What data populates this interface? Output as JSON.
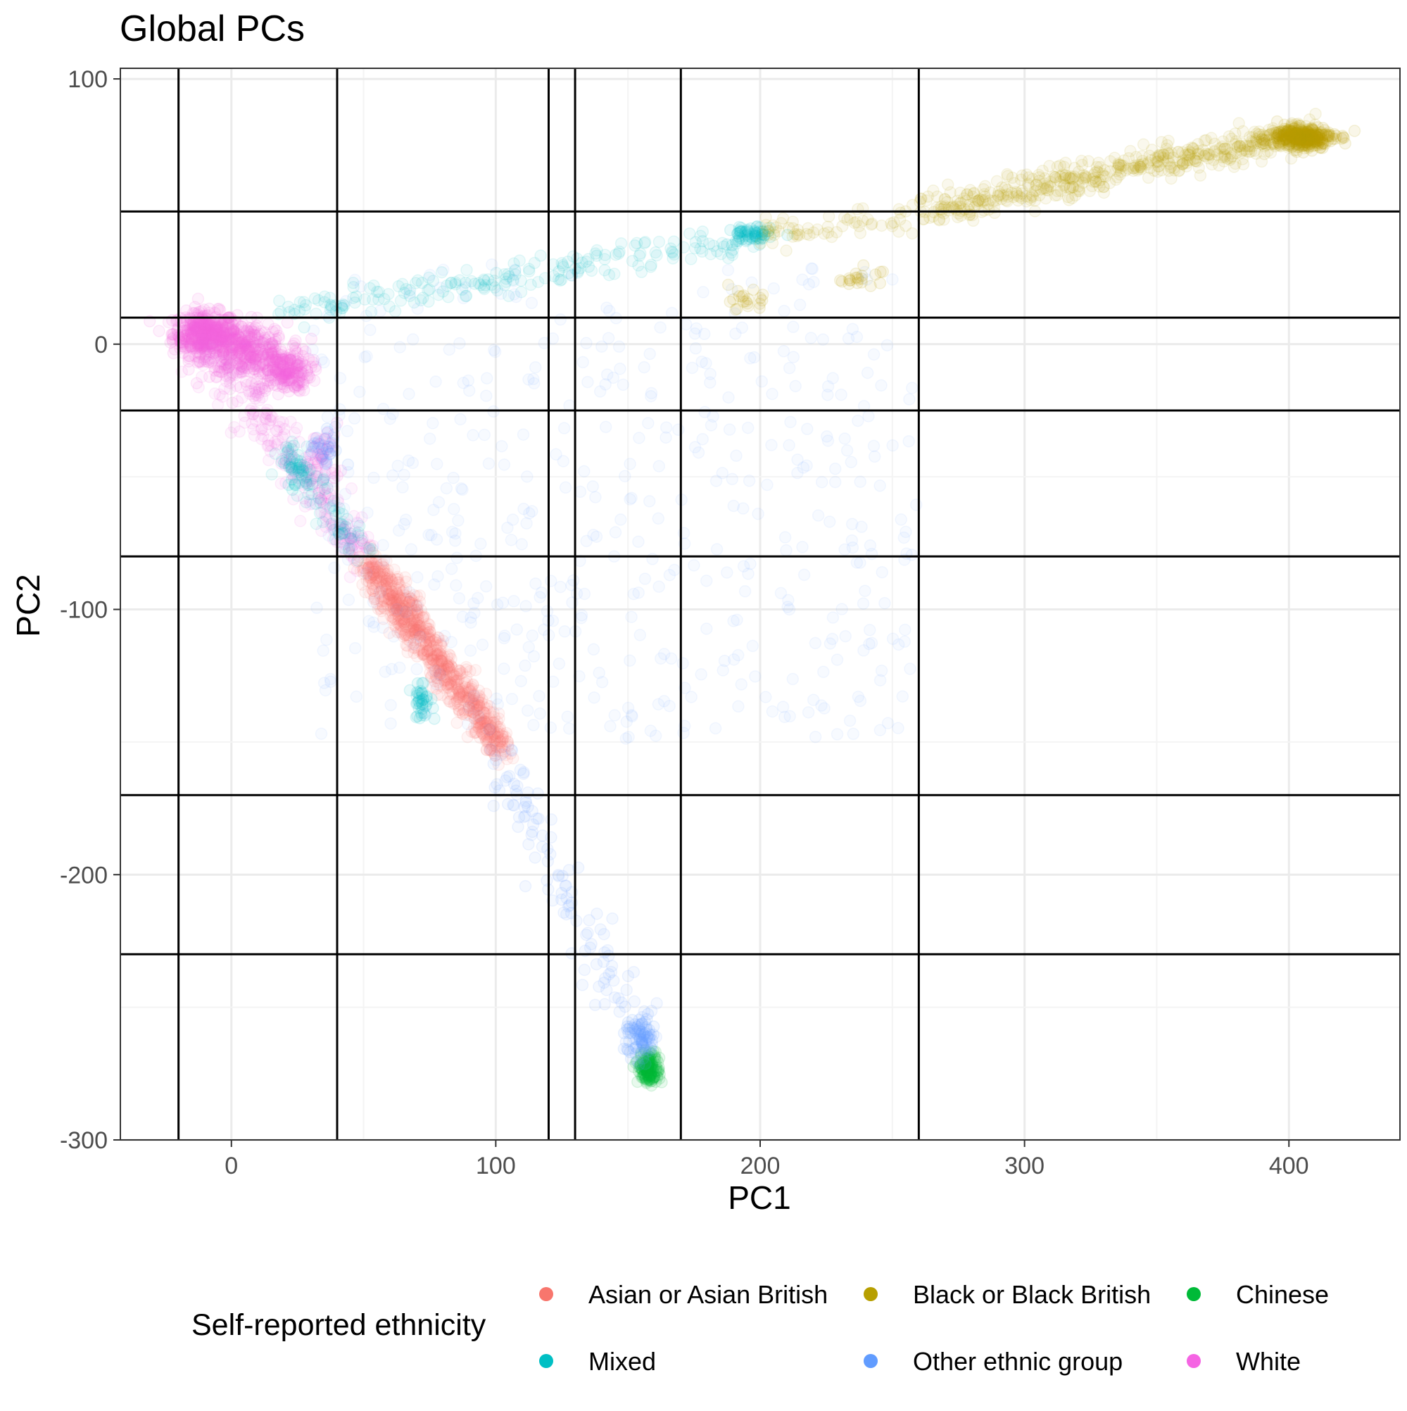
{
  "chart_data": {
    "type": "scatter",
    "title": "Global PCs",
    "xlabel": "PC1",
    "ylabel": "PC2",
    "xlim": [
      -42,
      442
    ],
    "ylim": [
      -300,
      104
    ],
    "x_ticks": [
      0,
      100,
      200,
      300,
      400
    ],
    "y_ticks": [
      100,
      0,
      -100,
      -200,
      -300
    ],
    "grid": true,
    "theme": "bw",
    "vertical_lines": [
      -20,
      40,
      120,
      130,
      170,
      260
    ],
    "horizontal_lines": [
      50,
      10,
      -25,
      -80,
      -170,
      -230
    ],
    "legend": {
      "title": "Self-reported ethnicity",
      "position": "bottom",
      "entries": [
        {
          "label": "Asian or Asian British",
          "color": "#F8766D"
        },
        {
          "label": "Black or Black British",
          "color": "#B79F00"
        },
        {
          "label": "Chinese",
          "color": "#00BA38"
        },
        {
          "label": "Mixed",
          "color": "#00BFC4"
        },
        {
          "label": "Other ethnic group",
          "color": "#619CFF"
        },
        {
          "label": "White",
          "color": "#F564E3"
        }
      ]
    },
    "series": [
      {
        "name": "White",
        "color": "#F564E3",
        "clusters": [
          {
            "x": -10,
            "y": 4,
            "n": 400,
            "sx": 6,
            "sy": 4
          },
          {
            "x": 5,
            "y": -2,
            "n": 300,
            "sx": 8,
            "sy": 5
          },
          {
            "x": 20,
            "y": -10,
            "n": 200,
            "sx": 5,
            "sy": 4
          },
          {
            "x": 35,
            "y": -42,
            "n": 40,
            "sx": 3,
            "sy": 6
          }
        ],
        "tracks": [
          {
            "x0": -10,
            "y0": 0,
            "x1": 50,
            "y1": -80,
            "n": 250,
            "spread": 4
          }
        ]
      },
      {
        "name": "Asian or Asian British",
        "color": "#F8766D",
        "tracks": [
          {
            "x0": 52,
            "y0": -83,
            "x1": 102,
            "y1": -152,
            "n": 800,
            "spread": 3
          }
        ]
      },
      {
        "name": "Mixed",
        "color": "#00BFC4",
        "clusters": [
          {
            "x": 196,
            "y": 41,
            "n": 60,
            "sx": 4,
            "sy": 2
          },
          {
            "x": 72,
            "y": -135,
            "n": 40,
            "sx": 2,
            "sy": 3
          },
          {
            "x": 25,
            "y": -47,
            "n": 30,
            "sx": 3,
            "sy": 4
          }
        ],
        "tracks": [
          {
            "x0": 20,
            "y0": 12,
            "x1": 198,
            "y1": 40,
            "n": 200,
            "spread": 3
          },
          {
            "x0": 20,
            "y0": -40,
            "x1": 50,
            "y1": -80,
            "n": 80,
            "spread": 3
          }
        ]
      },
      {
        "name": "Black or Black British",
        "color": "#B79F00",
        "clusters": [
          {
            "x": 405,
            "y": 78,
            "n": 300,
            "sx": 6,
            "sy": 2
          },
          {
            "x": 195,
            "y": 16,
            "n": 20,
            "sx": 3,
            "sy": 2
          },
          {
            "x": 238,
            "y": 25,
            "n": 20,
            "sx": 4,
            "sy": 2
          }
        ],
        "tracks": [
          {
            "x0": 260,
            "y0": 50,
            "x1": 410,
            "y1": 80,
            "n": 500,
            "spread": 3
          },
          {
            "x0": 200,
            "y0": 40,
            "x1": 260,
            "y1": 50,
            "n": 60,
            "spread": 3
          }
        ]
      },
      {
        "name": "Chinese",
        "color": "#00BA38",
        "clusters": [
          {
            "x": 158,
            "y": -273,
            "n": 160,
            "sx": 2,
            "sy": 3
          }
        ]
      },
      {
        "name": "Other ethnic group",
        "color": "#619CFF",
        "clusters": [
          {
            "x": 155,
            "y": -262,
            "n": 80,
            "sx": 3,
            "sy": 4
          },
          {
            "x": 35,
            "y": -40,
            "n": 30,
            "sx": 3,
            "sy": 4
          }
        ],
        "tracks": [
          {
            "x0": 100,
            "y0": -152,
            "x1": 155,
            "y1": -265,
            "n": 120,
            "spread": 4
          }
        ],
        "scatter": {
          "xmin": 30,
          "xmax": 260,
          "ymin": -150,
          "ymax": 30,
          "n": 500
        }
      }
    ]
  }
}
